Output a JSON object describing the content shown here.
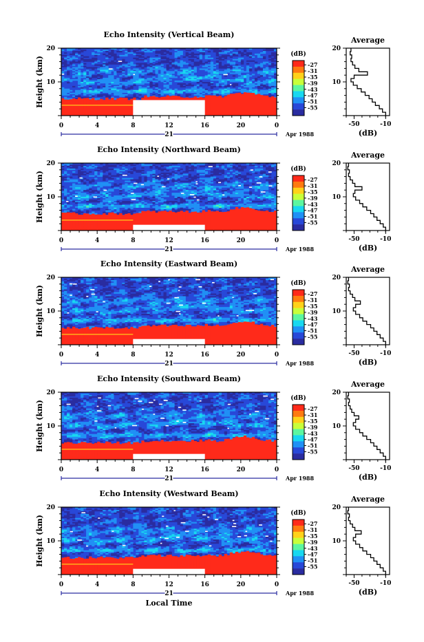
{
  "panels": [
    {
      "title": "Echo Intensity (Vertical Beam)"
    },
    {
      "title": "Echo Intensity (Northward Beam)"
    },
    {
      "title": "Echo Intensity (Eastward Beam)"
    },
    {
      "title": "Echo Intensity (Southward Beam)"
    },
    {
      "title": "Echo Intensity (Westward Beam)"
    }
  ],
  "ylabel": "Height (km)",
  "y_ticks": [
    "20",
    "10"
  ],
  "x_ticks": [
    "0",
    "4",
    "8",
    "12",
    "16",
    "20",
    "0"
  ],
  "day_label": "21",
  "date_label": "Apr 1988",
  "xlabel": "Local Time",
  "colorbar": {
    "unit": "(dB)",
    "labels": [
      "-27",
      "-31",
      "-35",
      "-39",
      "-43",
      "-47",
      "-51",
      "-55"
    ],
    "colors": [
      "#ff2a1a",
      "#ff7a10",
      "#ffd21a",
      "#c8ff3a",
      "#5cf6a0",
      "#18d8f0",
      "#2090f5",
      "#2848d8",
      "#2a2ca0"
    ]
  },
  "average": {
    "title": "Average",
    "xlabel": "(dB)",
    "x_ticks": [
      "-50",
      "-10"
    ],
    "y_ticks": [
      "20",
      "10"
    ]
  },
  "chart_data": [
    {
      "type": "heatmap",
      "title": "Echo Intensity (Vertical Beam)",
      "xlabel": "Local Time",
      "ylabel": "Height (km)",
      "xlim": [
        0,
        24
      ],
      "ylim": [
        0,
        20
      ],
      "colorbar_range_dB": [
        -55,
        -27
      ],
      "missing_data_hours": [
        8,
        16
      ],
      "missing_data_height_km": [
        0,
        5
      ],
      "average_profile": {
        "xlabel": "(dB)",
        "xlim": [
          -60,
          -5
        ],
        "ylim": [
          0,
          20
        ],
        "height_km": [
          1,
          2,
          3,
          4,
          5,
          6,
          7,
          8,
          9,
          10,
          11,
          12,
          13,
          14,
          15,
          16,
          17,
          18,
          19,
          20
        ],
        "avg_dB": [
          -10,
          -14,
          -18,
          -23,
          -27,
          -31,
          -36,
          -41,
          -46,
          -51,
          -54,
          -50,
          -33,
          -44,
          -49,
          -52,
          -54,
          -53,
          -55,
          -54
        ]
      }
    },
    {
      "type": "heatmap",
      "title": "Echo Intensity (Northward Beam)",
      "xlabel": "Local Time",
      "ylabel": "Height (km)",
      "xlim": [
        0,
        24
      ],
      "ylim": [
        0,
        20
      ],
      "colorbar_range_dB": [
        -55,
        -27
      ],
      "missing_data_hours": [
        8,
        16
      ],
      "missing_data_height_km": [
        0,
        1.7
      ],
      "average_profile": {
        "xlabel": "(dB)",
        "xlim": [
          -60,
          -5
        ],
        "ylim": [
          0,
          20
        ],
        "height_km": [
          1,
          2,
          3,
          4,
          5,
          6,
          7,
          8,
          9,
          10,
          11,
          12,
          13,
          14,
          15,
          16,
          17,
          18,
          19,
          20
        ],
        "avg_dB": [
          -10,
          -13,
          -17,
          -21,
          -25,
          -29,
          -34,
          -39,
          -43,
          -48,
          -51,
          -49,
          -40,
          -49,
          -52,
          -55,
          -57,
          -56,
          -58,
          -57
        ]
      }
    },
    {
      "type": "heatmap",
      "title": "Echo Intensity (Eastward Beam)",
      "xlabel": "Local Time",
      "ylabel": "Height (km)",
      "xlim": [
        0,
        24
      ],
      "ylim": [
        0,
        20
      ],
      "colorbar_range_dB": [
        -55,
        -27
      ],
      "missing_data_hours": [
        8,
        16
      ],
      "missing_data_height_km": [
        0,
        1.7
      ],
      "average_profile": {
        "xlabel": "(dB)",
        "xlim": [
          -60,
          -5
        ],
        "ylim": [
          0,
          20
        ],
        "height_km": [
          1,
          2,
          3,
          4,
          5,
          6,
          7,
          8,
          9,
          10,
          11,
          12,
          13,
          14,
          15,
          16,
          17,
          18,
          19,
          20
        ],
        "avg_dB": [
          -10,
          -13,
          -17,
          -21,
          -25,
          -29,
          -34,
          -39,
          -43,
          -48,
          -51,
          -48,
          -42,
          -49,
          -52,
          -55,
          -57,
          -56,
          -58,
          -57
        ]
      }
    },
    {
      "type": "heatmap",
      "title": "Echo Intensity (Southward Beam)",
      "xlabel": "Local Time",
      "ylabel": "Height (km)",
      "xlim": [
        0,
        24
      ],
      "ylim": [
        0,
        20
      ],
      "colorbar_range_dB": [
        -55,
        -27
      ],
      "missing_data_hours": [
        8,
        16
      ],
      "missing_data_height_km": [
        0,
        1.7
      ],
      "average_profile": {
        "xlabel": "(dB)",
        "xlim": [
          -60,
          -5
        ],
        "ylim": [
          0,
          20
        ],
        "height_km": [
          1,
          2,
          3,
          4,
          5,
          6,
          7,
          8,
          9,
          10,
          11,
          12,
          13,
          14,
          15,
          16,
          17,
          18,
          19,
          20
        ],
        "avg_dB": [
          -10,
          -13,
          -17,
          -21,
          -25,
          -29,
          -34,
          -39,
          -43,
          -48,
          -51,
          -48,
          -44,
          -50,
          -53,
          -55,
          -57,
          -56,
          -58,
          -57
        ]
      }
    },
    {
      "type": "heatmap",
      "title": "Echo Intensity (Westward Beam)",
      "xlabel": "Local Time",
      "ylabel": "Height (km)",
      "xlim": [
        0,
        24
      ],
      "ylim": [
        0,
        20
      ],
      "colorbar_range_dB": [
        -55,
        -27
      ],
      "missing_data_hours": [
        8,
        16
      ],
      "missing_data_height_km": [
        0,
        1.7
      ],
      "average_profile": {
        "xlabel": "(dB)",
        "xlim": [
          -60,
          -5
        ],
        "ylim": [
          0,
          20
        ],
        "height_km": [
          1,
          2,
          3,
          4,
          5,
          6,
          7,
          8,
          9,
          10,
          11,
          12,
          13,
          14,
          15,
          16,
          17,
          18,
          19,
          20
        ],
        "avg_dB": [
          -10,
          -13,
          -17,
          -21,
          -25,
          -29,
          -34,
          -39,
          -43,
          -48,
          -51,
          -48,
          -41,
          -49,
          -52,
          -55,
          -57,
          -56,
          -58,
          -57
        ]
      }
    }
  ]
}
